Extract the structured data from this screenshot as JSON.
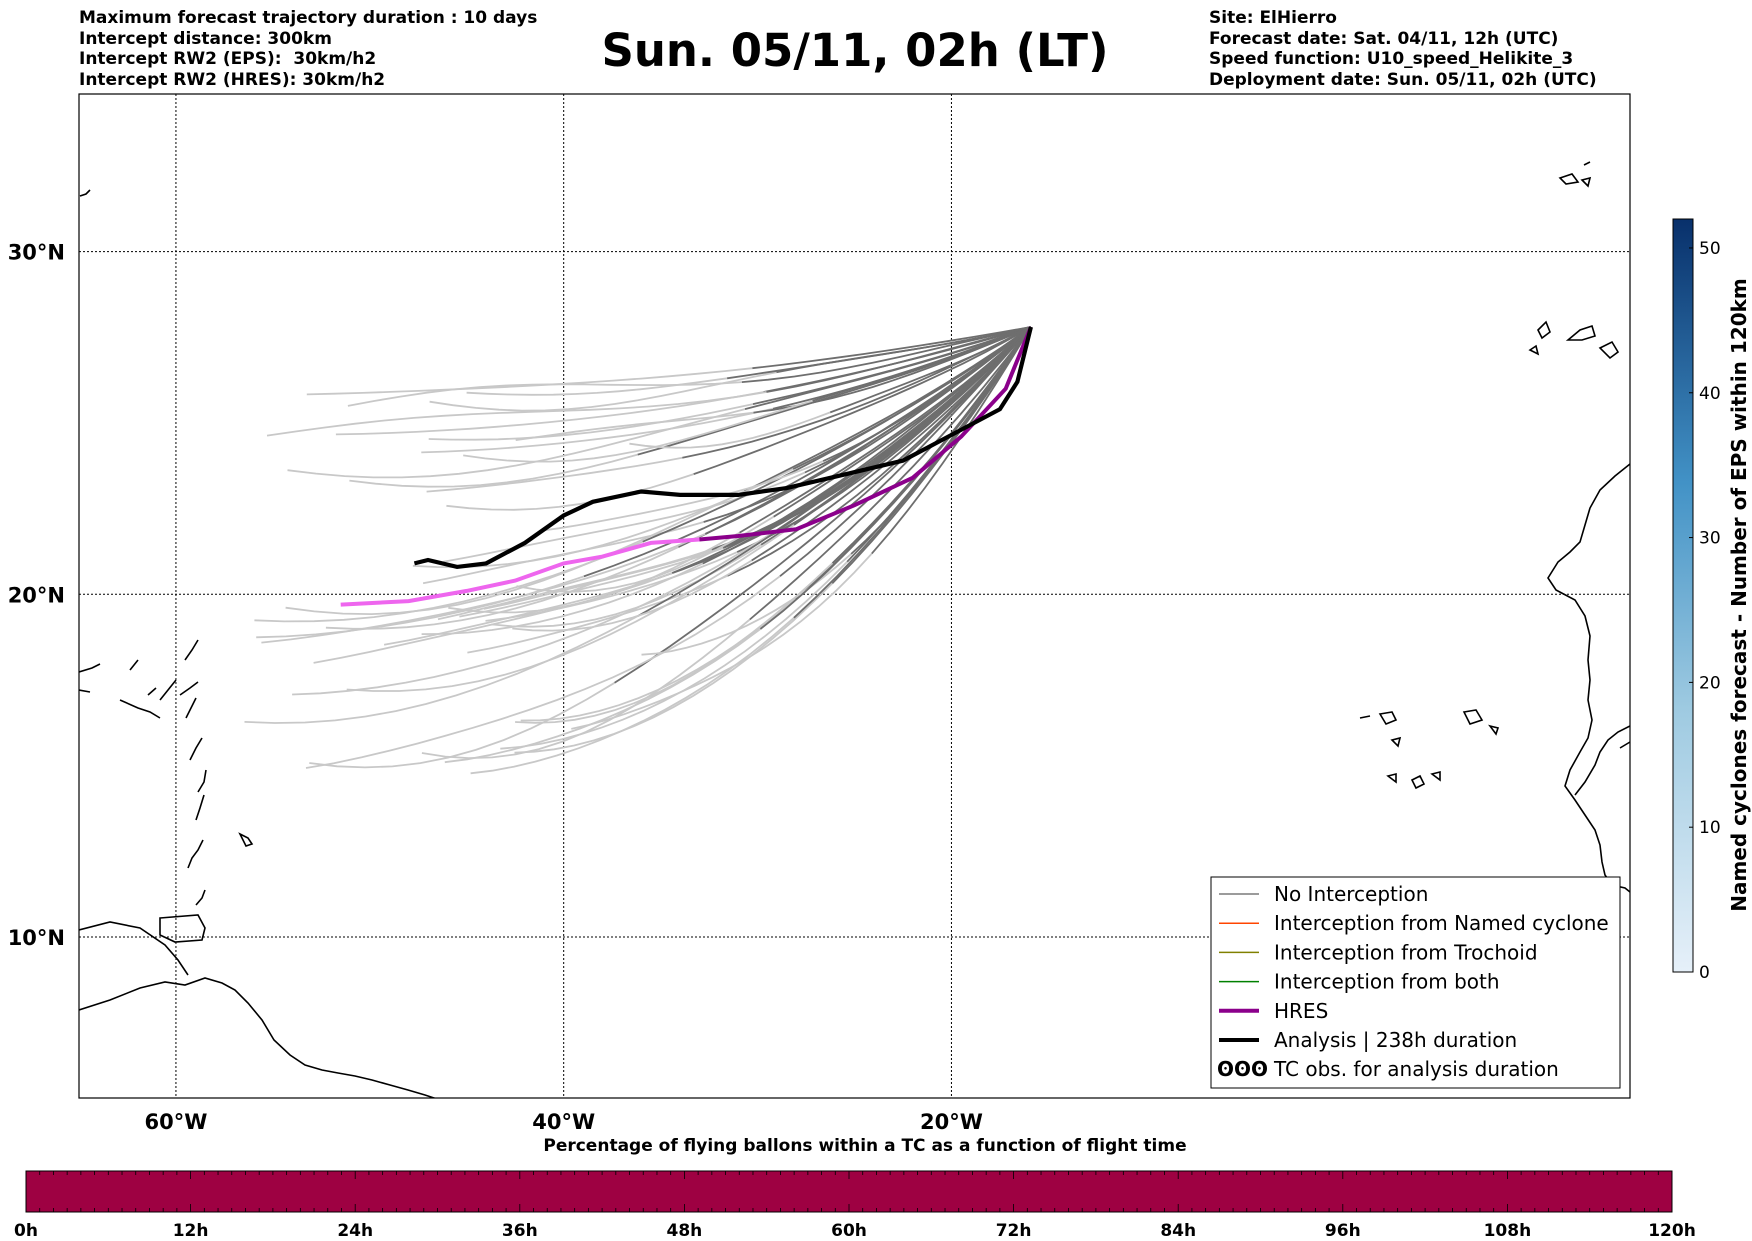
{
  "header": {
    "left_lines": [
      "Maximum forecast trajectory duration : 10 days",
      "Intercept distance: 300km",
      "Intercept RW2 (EPS):  30km/h2",
      "Intercept RW2 (HRES): 30km/h2"
    ],
    "title": "Sun. 05/11, 02h (LT)",
    "right_lines": [
      "Site: ElHierro",
      "Forecast date: Sat. 04/11, 12h (UTC)",
      "Speed function: U10_speed_Helikite_3",
      "Deployment date: Sun. 05/11, 02h (UTC)"
    ]
  },
  "map": {
    "lon_range": [
      -65,
      15
    ],
    "lat_range": [
      5.3,
      34.6
    ],
    "lon_ticks": [
      {
        "value": -60,
        "label": "60°W"
      },
      {
        "value": -40,
        "label": "40°W"
      },
      {
        "value": -20,
        "label": "20°W"
      }
    ],
    "lat_ticks": [
      {
        "value": 30,
        "label": "30°N"
      },
      {
        "value": 20,
        "label": "20°N"
      },
      {
        "value": 10,
        "label": "10°N"
      }
    ],
    "colors": {
      "eps_near": "#6e6e6e",
      "eps_far": "#c8c8c8",
      "hres": "#8b008b",
      "hres_far": "#ee66ee",
      "analysis": "#000000",
      "named_cyclone": "#ff4500",
      "trochoid": "#808000",
      "both": "#008000"
    },
    "analysis_track": [
      [
        -15.9,
        27.8
      ],
      [
        -16.6,
        26.2
      ],
      [
        -17.5,
        25.4
      ],
      [
        -19.5,
        24.8
      ],
      [
        -22.5,
        23.9
      ],
      [
        -25.5,
        23.5
      ],
      [
        -28.5,
        23.1
      ],
      [
        -31,
        22.9
      ],
      [
        -34,
        22.9
      ],
      [
        -36,
        23.0
      ],
      [
        -38.5,
        22.7
      ],
      [
        -40,
        22.3
      ],
      [
        -42,
        21.5
      ],
      [
        -44,
        20.9
      ],
      [
        -45.5,
        20.8
      ],
      [
        -47,
        21.0
      ],
      [
        -47.7,
        20.9
      ]
    ],
    "hres_track": [
      [
        -15.9,
        27.8
      ],
      [
        -17.2,
        26.0
      ],
      [
        -19.5,
        24.6
      ],
      [
        -22,
        23.4
      ],
      [
        -25,
        22.6
      ],
      [
        -28,
        21.9
      ],
      [
        -31,
        21.7
      ],
      [
        -33,
        21.6
      ],
      [
        -35.5,
        21.5
      ],
      [
        -38,
        21.1
      ],
      [
        -40,
        20.9
      ],
      [
        -42.5,
        20.4
      ],
      [
        -45,
        20.1
      ],
      [
        -48,
        19.8
      ],
      [
        -51.5,
        19.7
      ]
    ]
  },
  "legend": {
    "items": [
      {
        "label": "No Interception",
        "style": "grey"
      },
      {
        "label": "Interception from Named cyclone",
        "style": "orange"
      },
      {
        "label": "Interception from Trochoid",
        "style": "olive"
      },
      {
        "label": "Interception from both",
        "style": "green"
      },
      {
        "label": "HRES",
        "style": "purple"
      },
      {
        "label": "Analysis | 238h duration",
        "style": "black"
      },
      {
        "label": "TC obs. for analysis duration",
        "style": "symbol"
      }
    ],
    "symbol_glyph": "ʘʘʘ"
  },
  "colorbar": {
    "label": "Named cyclones forecast - Number of EPS within 120km",
    "ticks": [
      "0",
      "10",
      "20",
      "30",
      "40",
      "50"
    ],
    "min": 0,
    "max": 52,
    "color_low": "#e4eef8",
    "color_high": "#08306b"
  },
  "timebar": {
    "title": "Percentage of flying ballons within a TC as a function of flight time",
    "ticks": [
      "0h",
      "12h",
      "24h",
      "36h",
      "48h",
      "60h",
      "72h",
      "84h",
      "96h",
      "108h",
      "120h"
    ],
    "fill_color": "#9e0142"
  }
}
